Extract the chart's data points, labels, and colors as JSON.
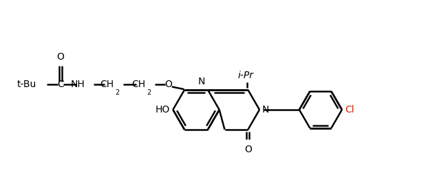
{
  "background_color": "#ffffff",
  "line_color": "#000000",
  "label_color_default": "#000000",
  "label_color_cl": "#cc2200",
  "label_color_ho": "#0000cc",
  "label_color_n": "#000000",
  "linewidth": 1.8,
  "fontsize_main": 10,
  "fontsize_sub": 7,
  "figsize": [
    6.19,
    2.77
  ],
  "dpi": 100,
  "xlim": [
    0,
    10
  ],
  "ylim": [
    0,
    4.5
  ]
}
